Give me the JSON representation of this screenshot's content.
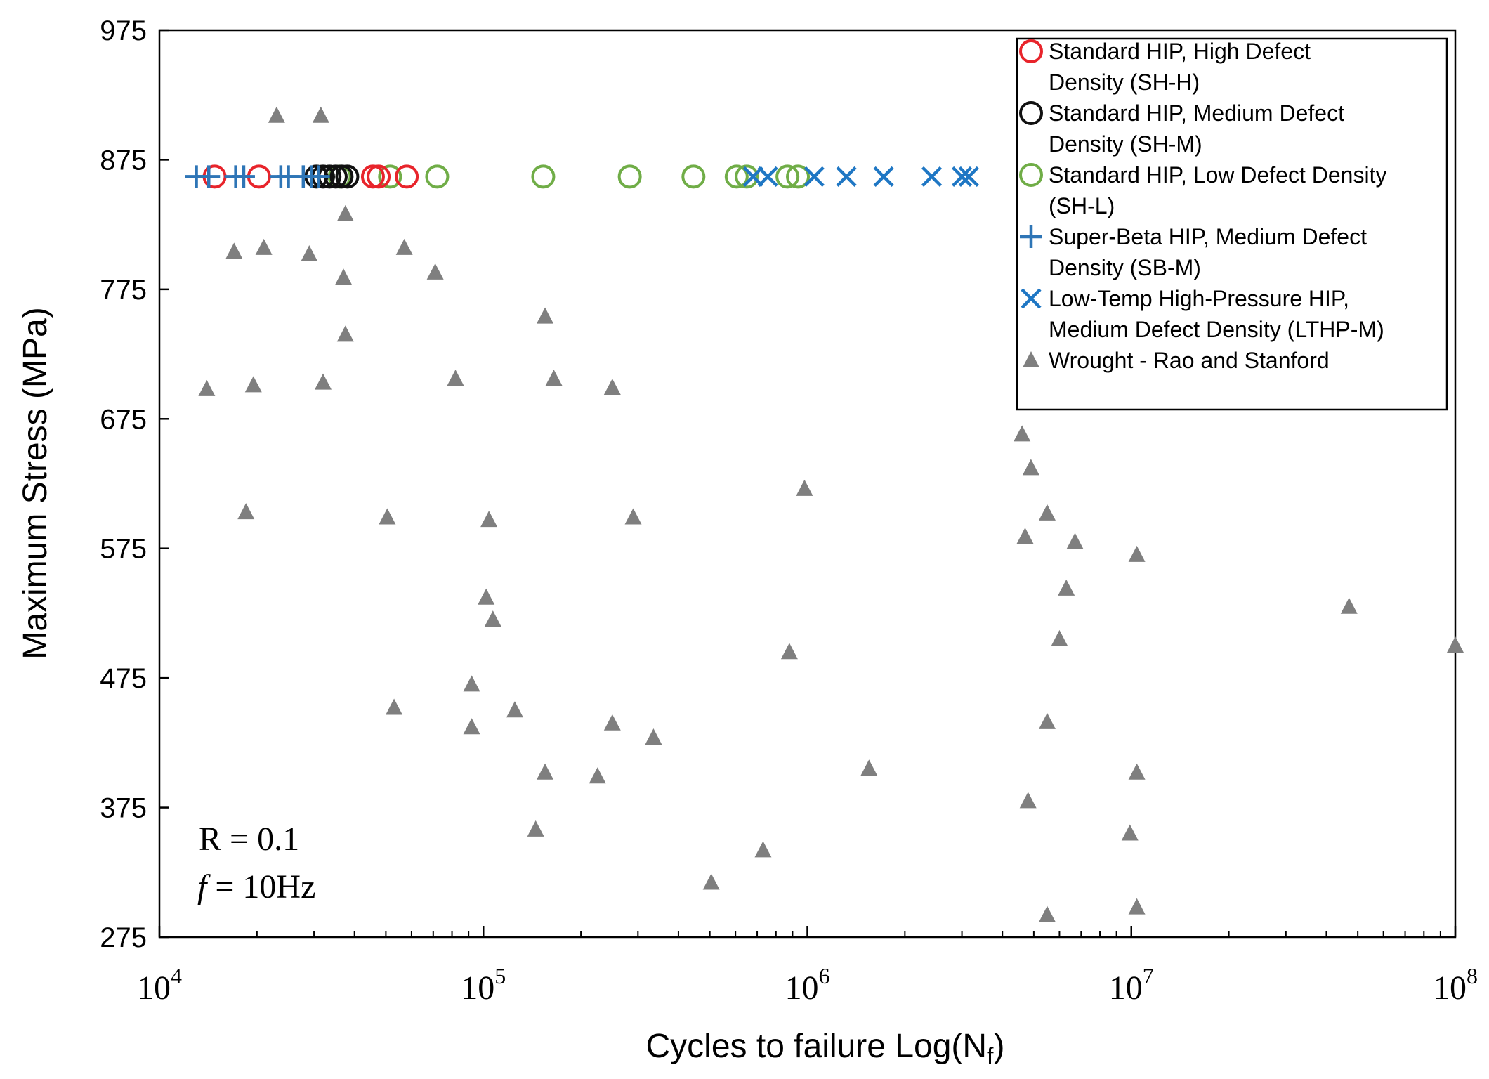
{
  "chart_data": {
    "type": "scatter",
    "title": "",
    "xlabel": "Cycles to failure Log(N",
    "xlabel_sub": "f",
    "xlabel_end": ")",
    "ylabel": "Maximum Stress (MPa)",
    "xscale": "log",
    "xlim": [
      10000,
      100000000
    ],
    "ylim": [
      275,
      975
    ],
    "y_ticks": [
      275,
      375,
      475,
      575,
      675,
      775,
      875,
      975
    ],
    "x_ticks": [
      {
        "value": 10000,
        "base": "10",
        "exp": "4"
      },
      {
        "value": 100000,
        "base": "10",
        "exp": "5"
      },
      {
        "value": 1000000,
        "base": "10",
        "exp": "6"
      },
      {
        "value": 10000000,
        "base": "10",
        "exp": "7"
      },
      {
        "value": 100000000,
        "base": "10",
        "exp": "8"
      }
    ],
    "grid": false,
    "legend_position": "top-right",
    "annotations": {
      "r_ratio": "R = 0.1",
      "freq_label": "f",
      "freq_value": " = 10Hz"
    },
    "series": [
      {
        "name": "Standard HIP, High Defect Density (SH-H)",
        "legend_lines": [
          "Standard HIP, High Defect",
          "Density (SH-H)"
        ],
        "marker": "circle",
        "color": "#e8242b",
        "points": [
          [
            14800,
            862
          ],
          [
            20300,
            862
          ],
          [
            45600,
            862
          ],
          [
            58000,
            862
          ],
          [
            47500,
            862
          ]
        ]
      },
      {
        "name": "Standard HIP, Medium Defect Density (SH-M)",
        "legend_lines": [
          "Standard HIP, Medium Defect",
          "Density (SH-M)"
        ],
        "marker": "circle",
        "color": "#111111",
        "points": [
          [
            30500,
            862
          ],
          [
            32000,
            862
          ],
          [
            33500,
            862
          ],
          [
            35000,
            862
          ],
          [
            36500,
            862
          ],
          [
            38000,
            862
          ]
        ]
      },
      {
        "name": "Standard HIP, Low Defect Density (SH-L)",
        "legend_lines": [
          "Standard HIP, Low Defect Density",
          "(SH-L)"
        ],
        "marker": "circle",
        "color": "#70ad47",
        "points": [
          [
            36000,
            862
          ],
          [
            51500,
            862
          ],
          [
            72000,
            862
          ],
          [
            153000,
            862
          ],
          [
            283000,
            862
          ],
          [
            445000,
            862
          ],
          [
            605000,
            862
          ],
          [
            650000,
            862
          ],
          [
            868000,
            862
          ],
          [
            935000,
            862
          ]
        ]
      },
      {
        "name": "Super-Beta HIP, Medium Defect Density (SB-M)",
        "legend_lines": [
          "Super-Beta HIP, Medium Defect",
          "Density (SB-M)"
        ],
        "marker": "plus",
        "color": "#2e75b6",
        "points": [
          [
            13000,
            862
          ],
          [
            14200,
            862
          ],
          [
            17200,
            862
          ],
          [
            18200,
            862
          ],
          [
            23700,
            862
          ],
          [
            25000,
            862
          ],
          [
            27800,
            862
          ],
          [
            29500,
            862
          ],
          [
            31000,
            862
          ]
        ]
      },
      {
        "name": "Low-Temp High-Pressure HIP, Medium Defect Density (LTHP-M)",
        "legend_lines": [
          "Low-Temp High-Pressure HIP,",
          "Medium Defect Density (LTHP-M)"
        ],
        "marker": "x",
        "color": "#1f77c4",
        "points": [
          [
            680000,
            862
          ],
          [
            755000,
            862
          ],
          [
            1050000,
            862
          ],
          [
            1320000,
            862
          ],
          [
            1720000,
            862
          ],
          [
            2420000,
            862
          ],
          [
            3000000,
            862
          ],
          [
            3150000,
            862
          ]
        ]
      },
      {
        "name": "Wrought - Rao and Stanford",
        "legend_lines": [
          "Wrought - Rao and Stanford"
        ],
        "marker": "triangle",
        "color": "#7f7f7f",
        "points": [
          [
            23000,
            909
          ],
          [
            31500,
            909
          ],
          [
            37500,
            833
          ],
          [
            17000,
            804
          ],
          [
            21000,
            807
          ],
          [
            29000,
            802
          ],
          [
            37000,
            784
          ],
          [
            57000,
            807
          ],
          [
            71000,
            788
          ],
          [
            155000,
            754
          ],
          [
            37500,
            740
          ],
          [
            14000,
            698
          ],
          [
            19500,
            701
          ],
          [
            32000,
            703
          ],
          [
            82000,
            706
          ],
          [
            165000,
            706
          ],
          [
            250000,
            699
          ],
          [
            4600000,
            663
          ],
          [
            4900000,
            637
          ],
          [
            980000,
            621
          ],
          [
            18500,
            603
          ],
          [
            50500,
            599
          ],
          [
            104000,
            597
          ],
          [
            290000,
            599
          ],
          [
            5500000,
            602
          ],
          [
            4700000,
            584
          ],
          [
            6700000,
            580
          ],
          [
            10400000,
            570
          ],
          [
            6300000,
            544
          ],
          [
            102000,
            537
          ],
          [
            107000,
            520
          ],
          [
            47000000,
            530
          ],
          [
            6000000,
            505
          ],
          [
            880000,
            495
          ],
          [
            100000000,
            500
          ],
          [
            92000,
            470
          ],
          [
            53000,
            452
          ],
          [
            125000,
            450
          ],
          [
            92000,
            437
          ],
          [
            250000,
            440
          ],
          [
            5500000,
            441
          ],
          [
            335000,
            429
          ],
          [
            155000,
            402
          ],
          [
            225000,
            399
          ],
          [
            1550000,
            405
          ],
          [
            10400000,
            402
          ],
          [
            4800000,
            380
          ],
          [
            145000,
            358
          ],
          [
            9900000,
            355
          ],
          [
            730000,
            342
          ],
          [
            505000,
            317
          ],
          [
            10400000,
            298
          ],
          [
            5500000,
            292
          ]
        ]
      }
    ]
  }
}
